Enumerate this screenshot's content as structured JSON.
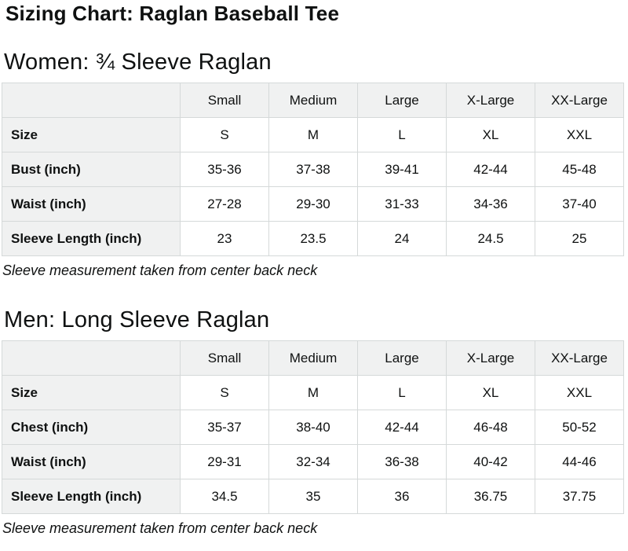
{
  "page": {
    "title": "Sizing Chart: Raglan Baseball Tee"
  },
  "colors": {
    "text": "#0f1111",
    "table_header_bg": "#f0f1f1",
    "table_border": "#d5d9d9",
    "cell_bg": "#ffffff"
  },
  "sections": [
    {
      "id": "women",
      "heading": "Women: ¾ Sleeve Raglan",
      "columns": [
        "",
        "Small",
        "Medium",
        "Large",
        "X-Large",
        "XX-Large"
      ],
      "rows": [
        {
          "label": "Size",
          "values": [
            "S",
            "M",
            "L",
            "XL",
            "XXL"
          ]
        },
        {
          "label": "Bust (inch)",
          "values": [
            "35-36",
            "37-38",
            "39-41",
            "42-44",
            "45-48"
          ]
        },
        {
          "label": "Waist (inch)",
          "values": [
            "27-28",
            "29-30",
            "31-33",
            "34-36",
            "37-40"
          ]
        },
        {
          "label": "Sleeve Length (inch)",
          "values": [
            "23",
            "23.5",
            "24",
            "24.5",
            "25"
          ]
        }
      ],
      "note": "Sleeve measurement taken from center back neck"
    },
    {
      "id": "men",
      "heading": "Men: Long Sleeve Raglan",
      "columns": [
        "",
        "Small",
        "Medium",
        "Large",
        "X-Large",
        "XX-Large"
      ],
      "rows": [
        {
          "label": "Size",
          "values": [
            "S",
            "M",
            "L",
            "XL",
            "XXL"
          ]
        },
        {
          "label": "Chest (inch)",
          "values": [
            "35-37",
            "38-40",
            "42-44",
            "46-48",
            "50-52"
          ]
        },
        {
          "label": "Waist (inch)",
          "values": [
            "29-31",
            "32-34",
            "36-38",
            "40-42",
            "44-46"
          ]
        },
        {
          "label": "Sleeve Length (inch)",
          "values": [
            "34.5",
            "35",
            "36",
            "36.75",
            "37.75"
          ]
        }
      ],
      "note": "Sleeve measurement taken from center back neck"
    }
  ]
}
